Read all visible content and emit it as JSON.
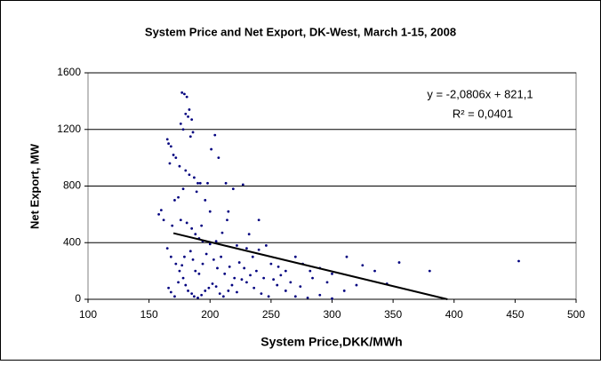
{
  "chart_data": {
    "type": "scatter",
    "title": "System Price and Net Export, DK-West, March 1-15, 2008",
    "x_label": "System Price,DKK/MWh",
    "y_label": "Net Export, MW",
    "annotations": [
      "y = -2,0806x + 821,1",
      "R² = 0,0401"
    ],
    "color": "#00007f",
    "trendline": {
      "x": [
        170,
        394.6
      ],
      "y": [
        467,
        0
      ],
      "color": "#000000"
    },
    "x": [
      177,
      179,
      181,
      183,
      180,
      176,
      182,
      178,
      185,
      186,
      184,
      165,
      166,
      168,
      170,
      167,
      172,
      175,
      180,
      183,
      187,
      190,
      192,
      189,
      178,
      174,
      171,
      160,
      158,
      162,
      169,
      176,
      181,
      185,
      188,
      191,
      194,
      200,
      205,
      210,
      214,
      219,
      227,
      215,
      222,
      230,
      235,
      240,
      246,
      250,
      256,
      262,
      270,
      276,
      282,
      290,
      300,
      312,
      325,
      335,
      355,
      200,
      196,
      198,
      193,
      165,
      168,
      172,
      175,
      178,
      180,
      182,
      185,
      187,
      190,
      193,
      196,
      199,
      202,
      205,
      208,
      211,
      215,
      218,
      222,
      226,
      230,
      236,
      242,
      248,
      255,
      262,
      270,
      280,
      290,
      300,
      166,
      168,
      171,
      174,
      177,
      179,
      184,
      186,
      188,
      191,
      194,
      197,
      203,
      206,
      209,
      212,
      216,
      220,
      224,
      228,
      233,
      238,
      244,
      252,
      258,
      266,
      274,
      284,
      296,
      310,
      320,
      345,
      453,
      380,
      240,
      232,
      213,
      207,
      204,
      201
    ],
    "values": [
      1460,
      1450,
      1430,
      1340,
      1310,
      1240,
      1290,
      1200,
      1270,
      1180,
      1150,
      1130,
      1100,
      1080,
      1020,
      960,
      1000,
      940,
      910,
      880,
      860,
      820,
      820,
      760,
      780,
      720,
      700,
      630,
      600,
      560,
      520,
      560,
      540,
      500,
      460,
      430,
      410,
      390,
      410,
      470,
      560,
      780,
      810,
      620,
      380,
      360,
      300,
      350,
      380,
      250,
      230,
      200,
      300,
      250,
      200,
      220,
      180,
      300,
      240,
      200,
      260,
      620,
      700,
      820,
      520,
      360,
      300,
      250,
      200,
      150,
      100,
      60,
      40,
      20,
      10,
      30,
      60,
      80,
      110,
      90,
      40,
      20,
      60,
      100,
      50,
      140,
      120,
      80,
      40,
      20,
      100,
      60,
      20,
      10,
      30,
      5,
      80,
      50,
      20,
      120,
      240,
      300,
      340,
      280,
      200,
      180,
      250,
      320,
      280,
      220,
      300,
      180,
      230,
      150,
      260,
      220,
      170,
      200,
      150,
      140,
      170,
      120,
      90,
      150,
      120,
      60,
      100,
      110,
      270,
      200,
      560,
      460,
      820,
      1000,
      1160,
      1060
    ],
    "xlim": [
      100,
      500
    ],
    "xticks": [
      100,
      150,
      200,
      250,
      300,
      350,
      400,
      450,
      500
    ],
    "ylim": [
      0,
      1600
    ],
    "yticks": [
      0,
      400,
      800,
      1200,
      1600
    ],
    "grid": true
  }
}
